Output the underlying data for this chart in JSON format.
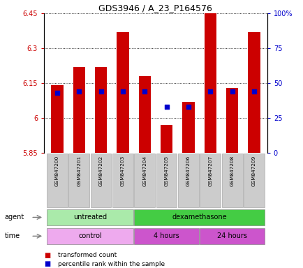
{
  "title": "GDS3946 / A_23_P164576",
  "samples": [
    "GSM847200",
    "GSM847201",
    "GSM847202",
    "GSM847203",
    "GSM847204",
    "GSM847205",
    "GSM847206",
    "GSM847207",
    "GSM847208",
    "GSM847209"
  ],
  "bar_values": [
    6.14,
    6.22,
    6.22,
    6.37,
    6.18,
    5.97,
    6.07,
    6.45,
    6.13,
    6.37
  ],
  "bar_base": 5.85,
  "percentile_values": [
    43,
    44,
    44,
    44,
    44,
    33,
    33,
    44,
    44,
    44
  ],
  "ylim": [
    5.85,
    6.45
  ],
  "y_ticks": [
    5.85,
    6.0,
    6.15,
    6.3,
    6.45
  ],
  "y_tick_labels": [
    "5.85",
    "6",
    "6.15",
    "6.3",
    "6.45"
  ],
  "y2_ticks": [
    0,
    25,
    50,
    75,
    100
  ],
  "y2_tick_labels": [
    "0",
    "25",
    "50",
    "75",
    "100%"
  ],
  "bar_color": "#cc0000",
  "percentile_color": "#0000cc",
  "agent_groups": [
    {
      "label": "untreated",
      "start": 0,
      "end": 4,
      "color": "#aaeaaa"
    },
    {
      "label": "dexamethasone",
      "start": 4,
      "end": 10,
      "color": "#44cc44"
    }
  ],
  "time_groups": [
    {
      "label": "control",
      "start": 0,
      "end": 4,
      "color": "#eeaaee"
    },
    {
      "label": "4 hours",
      "start": 4,
      "end": 7,
      "color": "#cc55cc"
    },
    {
      "label": "24 hours",
      "start": 7,
      "end": 10,
      "color": "#cc55cc"
    }
  ],
  "legend_items": [
    {
      "label": "transformed count",
      "color": "#cc0000"
    },
    {
      "label": "percentile rank within the sample",
      "color": "#0000cc"
    }
  ],
  "tick_bg_color": "#cccccc",
  "n": 10
}
